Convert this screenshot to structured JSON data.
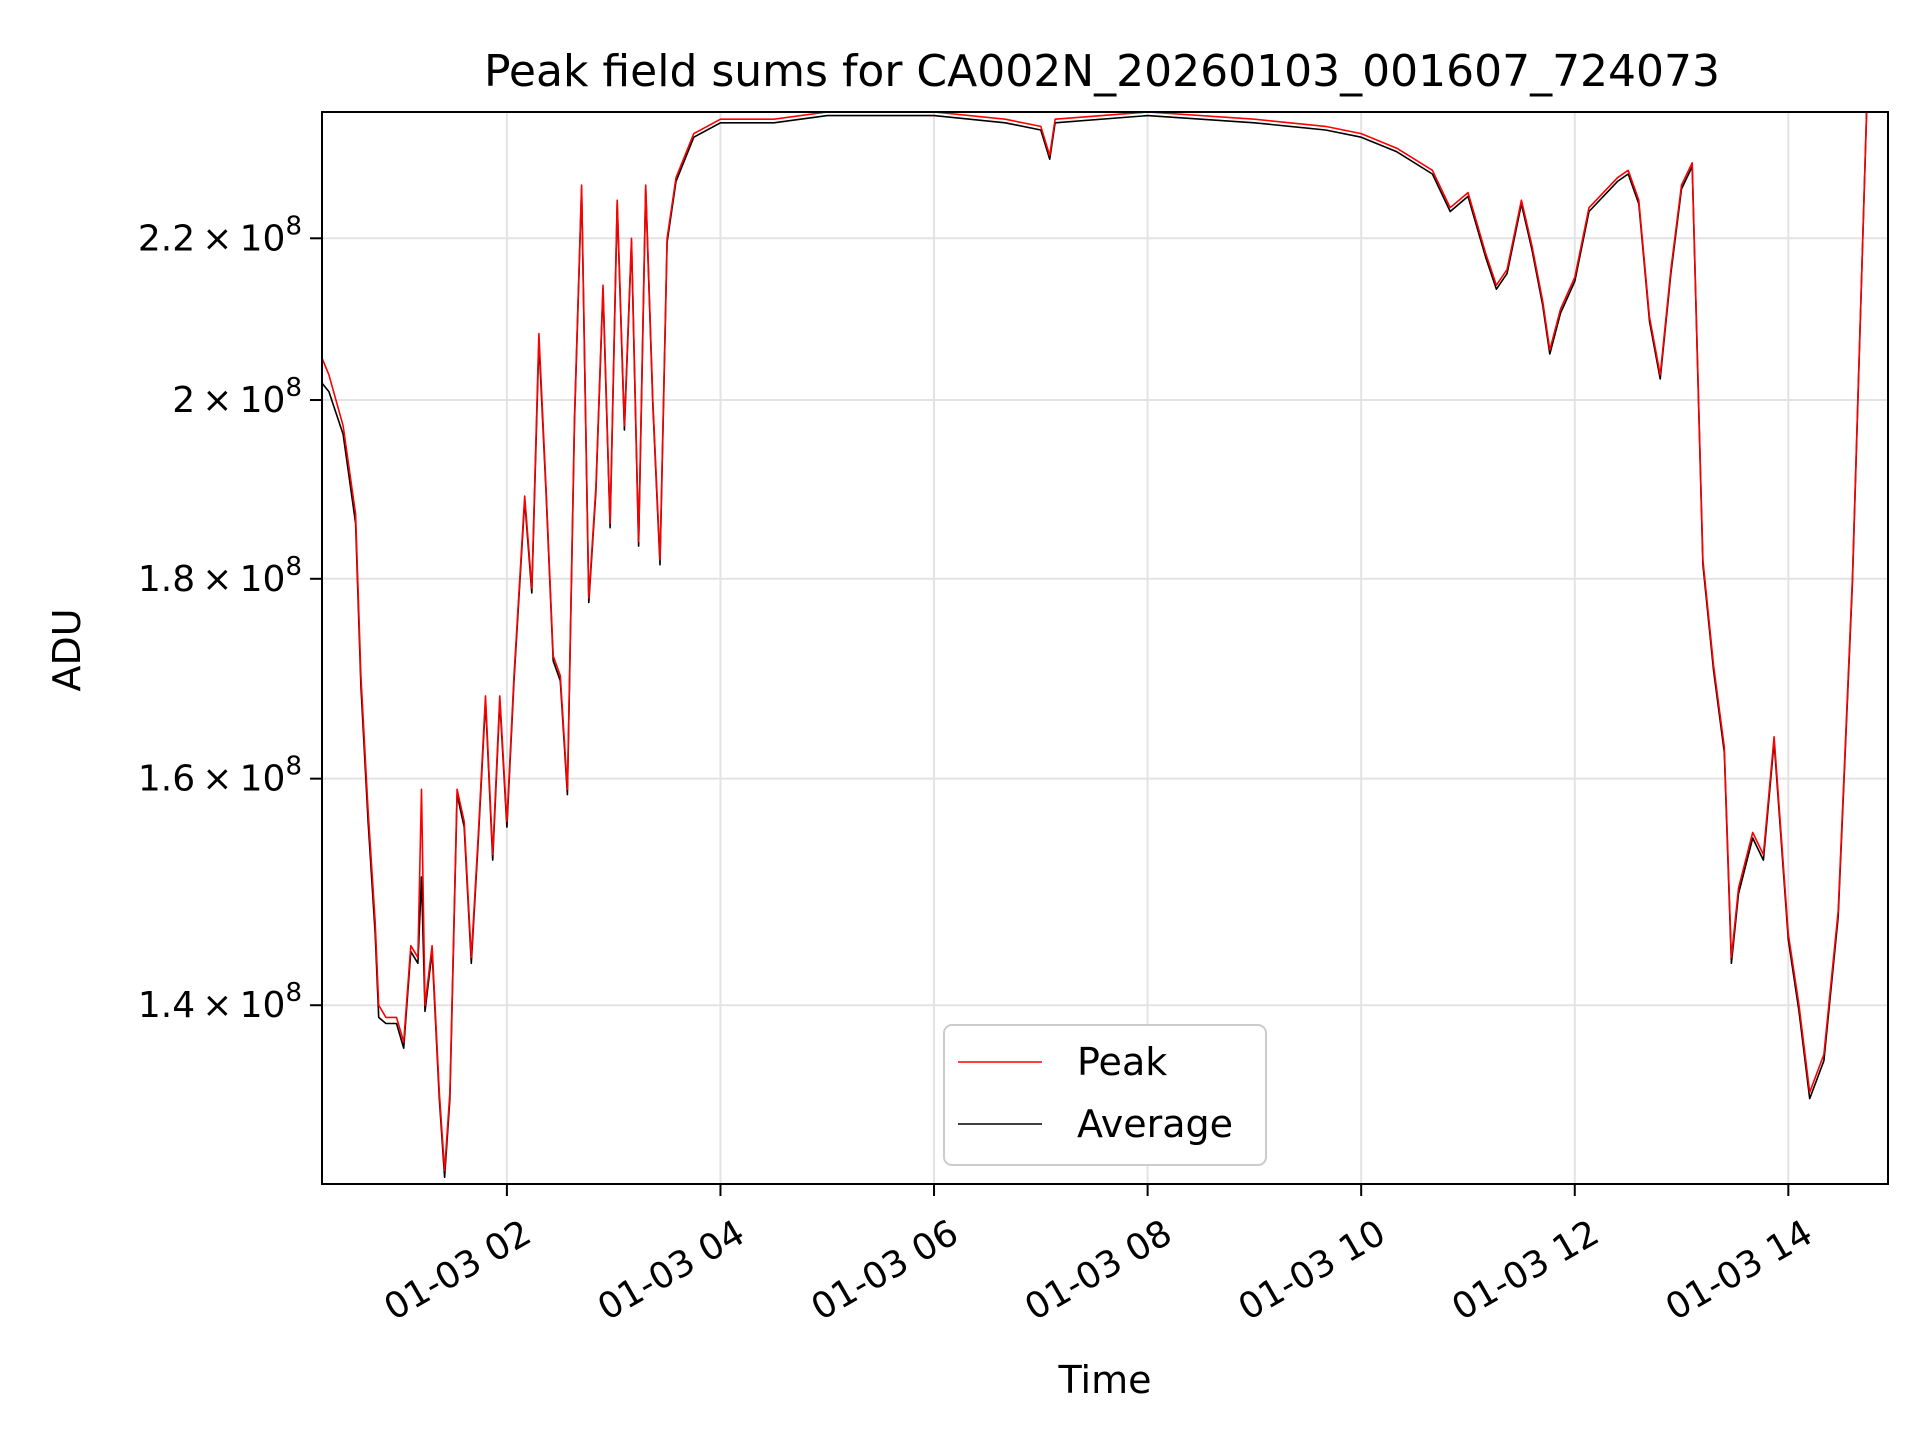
{
  "chart_data": {
    "type": "line",
    "title": "Peak field sums for CA002N_20260103_001607_724073",
    "xlabel": "Time",
    "ylabel": "ADU",
    "yscale": "log",
    "ylim": [
      126000000,
      237000000
    ],
    "xlim": [
      "2026-01-03T00:16:07",
      "2026-01-03T14:56:00"
    ],
    "grid": true,
    "legend": {
      "placement": "lower-center"
    },
    "x_ticks": [
      {
        "value": "2026-01-03T02:00",
        "label": "01-03 02"
      },
      {
        "value": "2026-01-03T04:00",
        "label": "01-03 04"
      },
      {
        "value": "2026-01-03T06:00",
        "label": "01-03 06"
      },
      {
        "value": "2026-01-03T08:00",
        "label": "01-03 08"
      },
      {
        "value": "2026-01-03T10:00",
        "label": "01-03 10"
      },
      {
        "value": "2026-01-03T12:00",
        "label": "01-03 12"
      },
      {
        "value": "2026-01-03T14:00",
        "label": "01-03 14"
      }
    ],
    "y_ticks": [
      {
        "value": 140000000,
        "mantissa": "1.4",
        "base": "10",
        "exponent": "8"
      },
      {
        "value": 160000000,
        "mantissa": "1.6",
        "base": "10",
        "exponent": "8"
      },
      {
        "value": 180000000,
        "mantissa": "1.8",
        "base": "10",
        "exponent": "8"
      },
      {
        "value": 200000000,
        "mantissa": "2",
        "base": "10",
        "exponent": "8"
      },
      {
        "value": 220000000,
        "mantissa": "2.2",
        "base": "10",
        "exponent": "8"
      }
    ],
    "series": [
      {
        "name": "Peak",
        "color": "#ff0000",
        "points": [
          [
            "2026-01-03T00:16:07",
            205000000.0
          ],
          [
            "2026-01-03T00:20",
            203000000.0
          ],
          [
            "2026-01-03T00:28",
            197000000.0
          ],
          [
            "2026-01-03T00:35",
            187000000.0
          ],
          [
            "2026-01-03T00:38",
            170000000.0
          ],
          [
            "2026-01-03T00:42",
            157000000.0
          ],
          [
            "2026-01-03T00:46",
            147000000.0
          ],
          [
            "2026-01-03T00:48",
            140000000.0
          ],
          [
            "2026-01-03T00:52",
            139000000.0
          ],
          [
            "2026-01-03T00:58",
            139000000.0
          ],
          [
            "2026-01-03T01:02",
            137000000.0
          ],
          [
            "2026-01-03T01:06",
            145000000.0
          ],
          [
            "2026-01-03T01:10",
            144000000.0
          ],
          [
            "2026-01-03T01:12",
            159000000.0
          ],
          [
            "2026-01-03T01:14",
            140000000.0
          ],
          [
            "2026-01-03T01:18",
            145000000.0
          ],
          [
            "2026-01-03T01:22",
            133000000.0
          ],
          [
            "2026-01-03T01:25",
            127000000.0
          ],
          [
            "2026-01-03T01:28",
            133000000.0
          ],
          [
            "2026-01-03T01:32",
            159000000.0
          ],
          [
            "2026-01-03T01:36",
            156000000.0
          ],
          [
            "2026-01-03T01:40",
            144000000.0
          ],
          [
            "2026-01-03T01:44",
            155000000.0
          ],
          [
            "2026-01-03T01:48",
            168000000.0
          ],
          [
            "2026-01-03T01:52",
            153000000.0
          ],
          [
            "2026-01-03T01:56",
            168000000.0
          ],
          [
            "2026-01-03T02:00",
            156000000.0
          ],
          [
            "2026-01-03T02:04",
            170000000.0
          ],
          [
            "2026-01-03T02:10",
            189000000.0
          ],
          [
            "2026-01-03T02:14",
            179000000.0
          ],
          [
            "2026-01-03T02:18",
            208000000.0
          ],
          [
            "2026-01-03T02:22",
            190000000.0
          ],
          [
            "2026-01-03T02:26",
            172000000.0
          ],
          [
            "2026-01-03T02:30",
            170000000.0
          ],
          [
            "2026-01-03T02:34",
            159000000.0
          ],
          [
            "2026-01-03T02:38",
            198000000.0
          ],
          [
            "2026-01-03T02:42",
            227000000.0
          ],
          [
            "2026-01-03T02:46",
            178000000.0
          ],
          [
            "2026-01-03T02:50",
            190000000.0
          ],
          [
            "2026-01-03T02:54",
            214000000.0
          ],
          [
            "2026-01-03T02:58",
            186000000.0
          ],
          [
            "2026-01-03T03:02",
            225000000.0
          ],
          [
            "2026-01-03T03:06",
            197000000.0
          ],
          [
            "2026-01-03T03:10",
            220000000.0
          ],
          [
            "2026-01-03T03:14",
            184000000.0
          ],
          [
            "2026-01-03T03:18",
            227000000.0
          ],
          [
            "2026-01-03T03:22",
            200000000.0
          ],
          [
            "2026-01-03T03:26",
            182000000.0
          ],
          [
            "2026-01-03T03:30",
            220000000.0
          ],
          [
            "2026-01-03T03:35",
            228000000.0
          ],
          [
            "2026-01-03T03:45",
            234000000.0
          ],
          [
            "2026-01-03T04:00",
            236000000.0
          ],
          [
            "2026-01-03T04:30",
            236000000.0
          ],
          [
            "2026-01-03T05:00",
            237000000.0
          ],
          [
            "2026-01-03T06:00",
            237000000.0
          ],
          [
            "2026-01-03T06:40",
            236000000.0
          ],
          [
            "2026-01-03T07:00",
            235000000.0
          ],
          [
            "2026-01-03T07:05",
            231000000.0
          ],
          [
            "2026-01-03T07:08",
            236000000.0
          ],
          [
            "2026-01-03T08:00",
            237000000.0
          ],
          [
            "2026-01-03T09:00",
            236000000.0
          ],
          [
            "2026-01-03T09:40",
            235000000.0
          ],
          [
            "2026-01-03T10:00",
            234000000.0
          ],
          [
            "2026-01-03T10:20",
            232000000.0
          ],
          [
            "2026-01-03T10:40",
            229000000.0
          ],
          [
            "2026-01-03T10:50",
            224000000.0
          ],
          [
            "2026-01-03T11:00",
            226000000.0
          ],
          [
            "2026-01-03T11:10",
            218000000.0
          ],
          [
            "2026-01-03T11:16",
            214000000.0
          ],
          [
            "2026-01-03T11:22",
            216000000.0
          ],
          [
            "2026-01-03T11:30",
            225000000.0
          ],
          [
            "2026-01-03T11:36",
            219000000.0
          ],
          [
            "2026-01-03T11:42",
            212000000.0
          ],
          [
            "2026-01-03T11:46",
            206000000.0
          ],
          [
            "2026-01-03T11:52",
            211000000.0
          ],
          [
            "2026-01-03T12:00",
            215000000.0
          ],
          [
            "2026-01-03T12:08",
            224000000.0
          ],
          [
            "2026-01-03T12:24",
            228000000.0
          ],
          [
            "2026-01-03T12:30",
            229000000.0
          ],
          [
            "2026-01-03T12:36",
            225000000.0
          ],
          [
            "2026-01-03T12:42",
            210000000.0
          ],
          [
            "2026-01-03T12:48",
            203000000.0
          ],
          [
            "2026-01-03T12:54",
            216000000.0
          ],
          [
            "2026-01-03T13:00",
            227000000.0
          ],
          [
            "2026-01-03T13:06",
            230000000.0
          ],
          [
            "2026-01-03T13:12",
            182000000.0
          ],
          [
            "2026-01-03T13:18",
            171000000.0
          ],
          [
            "2026-01-03T13:24",
            163000000.0
          ],
          [
            "2026-01-03T13:28",
            144000000.0
          ],
          [
            "2026-01-03T13:32",
            150000000.0
          ],
          [
            "2026-01-03T13:40",
            155000000.0
          ],
          [
            "2026-01-03T13:46",
            153000000.0
          ],
          [
            "2026-01-03T13:52",
            164000000.0
          ],
          [
            "2026-01-03T14:00",
            146000000.0
          ],
          [
            "2026-01-03T14:06",
            140000000.0
          ],
          [
            "2026-01-03T14:12",
            133000000.0
          ],
          [
            "2026-01-03T14:20",
            136000000.0
          ],
          [
            "2026-01-03T14:28",
            148000000.0
          ],
          [
            "2026-01-03T14:36",
            180000000.0
          ],
          [
            "2026-01-03T14:44",
            237000000.0
          ]
        ]
      },
      {
        "name": "Average",
        "color": "#000000",
        "points": [
          [
            "2026-01-03T00:16:07",
            202000000.0
          ],
          [
            "2026-01-03T00:20",
            201000000.0
          ],
          [
            "2026-01-03T00:28",
            196000000.0
          ],
          [
            "2026-01-03T00:35",
            186000000.0
          ],
          [
            "2026-01-03T00:38",
            169000000.0
          ],
          [
            "2026-01-03T00:42",
            156000000.0
          ],
          [
            "2026-01-03T00:46",
            146000000.0
          ],
          [
            "2026-01-03T00:48",
            139000000.0
          ],
          [
            "2026-01-03T00:52",
            138500000.0
          ],
          [
            "2026-01-03T00:58",
            138500000.0
          ],
          [
            "2026-01-03T01:02",
            136500000.0
          ],
          [
            "2026-01-03T01:06",
            144500000.0
          ],
          [
            "2026-01-03T01:10",
            143500000.0
          ],
          [
            "2026-01-03T01:12",
            151000000.0
          ],
          [
            "2026-01-03T01:14",
            139500000.0
          ],
          [
            "2026-01-03T01:18",
            144500000.0
          ],
          [
            "2026-01-03T01:22",
            132500000.0
          ],
          [
            "2026-01-03T01:25",
            126500000.0
          ],
          [
            "2026-01-03T01:28",
            132500000.0
          ],
          [
            "2026-01-03T01:32",
            158500000.0
          ],
          [
            "2026-01-03T01:36",
            155500000.0
          ],
          [
            "2026-01-03T01:40",
            143500000.0
          ],
          [
            "2026-01-03T01:44",
            154500000.0
          ],
          [
            "2026-01-03T01:48",
            167500000.0
          ],
          [
            "2026-01-03T01:52",
            152500000.0
          ],
          [
            "2026-01-03T01:56",
            167500000.0
          ],
          [
            "2026-01-03T02:00",
            155500000.0
          ],
          [
            "2026-01-03T02:04",
            169500000.0
          ],
          [
            "2026-01-03T02:10",
            188500000.0
          ],
          [
            "2026-01-03T02:14",
            178500000.0
          ],
          [
            "2026-01-03T02:18",
            207000000.0
          ],
          [
            "2026-01-03T02:22",
            189500000.0
          ],
          [
            "2026-01-03T02:26",
            171500000.0
          ],
          [
            "2026-01-03T02:30",
            169500000.0
          ],
          [
            "2026-01-03T02:34",
            158500000.0
          ],
          [
            "2026-01-03T02:38",
            197500000.0
          ],
          [
            "2026-01-03T02:42",
            226500000.0
          ],
          [
            "2026-01-03T02:46",
            177500000.0
          ],
          [
            "2026-01-03T02:50",
            189500000.0
          ],
          [
            "2026-01-03T02:54",
            213500000.0
          ],
          [
            "2026-01-03T02:58",
            185500000.0
          ],
          [
            "2026-01-03T03:02",
            224500000.0
          ],
          [
            "2026-01-03T03:06",
            196500000.0
          ],
          [
            "2026-01-03T03:10",
            219500000.0
          ],
          [
            "2026-01-03T03:14",
            183500000.0
          ],
          [
            "2026-01-03T03:18",
            226500000.0
          ],
          [
            "2026-01-03T03:22",
            199500000.0
          ],
          [
            "2026-01-03T03:26",
            181500000.0
          ],
          [
            "2026-01-03T03:30",
            219500000.0
          ],
          [
            "2026-01-03T03:35",
            227500000.0
          ],
          [
            "2026-01-03T03:45",
            233500000.0
          ],
          [
            "2026-01-03T04:00",
            235500000.0
          ],
          [
            "2026-01-03T04:30",
            235500000.0
          ],
          [
            "2026-01-03T05:00",
            236500000.0
          ],
          [
            "2026-01-03T06:00",
            236500000.0
          ],
          [
            "2026-01-03T06:40",
            235500000.0
          ],
          [
            "2026-01-03T07:00",
            234500000.0
          ],
          [
            "2026-01-03T07:05",
            230500000.0
          ],
          [
            "2026-01-03T07:08",
            235500000.0
          ],
          [
            "2026-01-03T08:00",
            236500000.0
          ],
          [
            "2026-01-03T09:00",
            235500000.0
          ],
          [
            "2026-01-03T09:40",
            234500000.0
          ],
          [
            "2026-01-03T10:00",
            233500000.0
          ],
          [
            "2026-01-03T10:20",
            231500000.0
          ],
          [
            "2026-01-03T10:40",
            228500000.0
          ],
          [
            "2026-01-03T10:50",
            223500000.0
          ],
          [
            "2026-01-03T11:00",
            225500000.0
          ],
          [
            "2026-01-03T11:10",
            217500000.0
          ],
          [
            "2026-01-03T11:16",
            213500000.0
          ],
          [
            "2026-01-03T11:22",
            215500000.0
          ],
          [
            "2026-01-03T11:30",
            224500000.0
          ],
          [
            "2026-01-03T11:36",
            218500000.0
          ],
          [
            "2026-01-03T11:42",
            211500000.0
          ],
          [
            "2026-01-03T11:46",
            205500000.0
          ],
          [
            "2026-01-03T11:52",
            210500000.0
          ],
          [
            "2026-01-03T12:00",
            214500000.0
          ],
          [
            "2026-01-03T12:08",
            223500000.0
          ],
          [
            "2026-01-03T12:24",
            227500000.0
          ],
          [
            "2026-01-03T12:30",
            228500000.0
          ],
          [
            "2026-01-03T12:36",
            224500000.0
          ],
          [
            "2026-01-03T12:42",
            209500000.0
          ],
          [
            "2026-01-03T12:48",
            202500000.0
          ],
          [
            "2026-01-03T12:54",
            215500000.0
          ],
          [
            "2026-01-03T13:00",
            226500000.0
          ],
          [
            "2026-01-03T13:06",
            229500000.0
          ],
          [
            "2026-01-03T13:12",
            181500000.0
          ],
          [
            "2026-01-03T13:18",
            170500000.0
          ],
          [
            "2026-01-03T13:24",
            162500000.0
          ],
          [
            "2026-01-03T13:28",
            143500000.0
          ],
          [
            "2026-01-03T13:32",
            149500000.0
          ],
          [
            "2026-01-03T13:40",
            154500000.0
          ],
          [
            "2026-01-03T13:46",
            152500000.0
          ],
          [
            "2026-01-03T13:52",
            163500000.0
          ],
          [
            "2026-01-03T14:00",
            145500000.0
          ],
          [
            "2026-01-03T14:06",
            139500000.0
          ],
          [
            "2026-01-03T14:12",
            132500000.0
          ],
          [
            "2026-01-03T14:20",
            135500000.0
          ],
          [
            "2026-01-03T14:28",
            147500000.0
          ],
          [
            "2026-01-03T14:36",
            179500000.0
          ],
          [
            "2026-01-03T14:44",
            237000000.0
          ]
        ]
      }
    ]
  }
}
